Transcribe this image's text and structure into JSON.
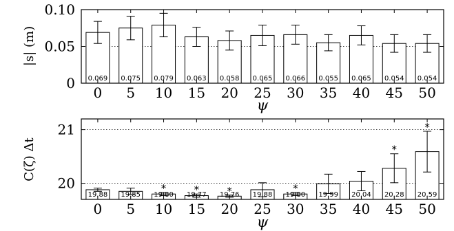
{
  "chart_data": [
    {
      "type": "bar",
      "title": "",
      "xlabel": "ψ",
      "ylabel": "|s| (m)",
      "categories": [
        "0",
        "5",
        "10",
        "15",
        "20",
        "25",
        "30",
        "35",
        "40",
        "45",
        "50"
      ],
      "values": [
        0.069,
        0.075,
        0.079,
        0.063,
        0.058,
        0.065,
        0.066,
        0.055,
        0.065,
        0.054,
        0.054
      ],
      "errors": [
        0.015,
        0.016,
        0.016,
        0.013,
        0.013,
        0.014,
        0.013,
        0.011,
        0.013,
        0.012,
        0.012
      ],
      "data_labels": [
        "0.069",
        "0.075",
        "0.079",
        "0.063",
        "0.058",
        "0.065",
        "0.066",
        "0.055",
        "0.065",
        "0.054",
        "0.054"
      ],
      "ylim": [
        0,
        0.1
      ],
      "yticks": [
        0,
        0.05,
        0.1
      ],
      "ytick_labels": [
        "0",
        "0.05",
        "0.10"
      ],
      "grid": "dotted",
      "significance": [
        false,
        false,
        false,
        false,
        false,
        false,
        false,
        false,
        false,
        false,
        false
      ]
    },
    {
      "type": "bar",
      "title": "",
      "xlabel": "ψ",
      "ylabel": "C(ζ) Δt",
      "categories": [
        "0",
        "5",
        "10",
        "15",
        "20",
        "25",
        "30",
        "35",
        "40",
        "45",
        "50"
      ],
      "values": [
        19.88,
        19.85,
        19.8,
        19.77,
        19.76,
        19.88,
        19.8,
        19.99,
        20.04,
        20.28,
        20.59
      ],
      "errors": [
        0.03,
        0.06,
        0.03,
        0.03,
        0.02,
        0.13,
        0.03,
        0.18,
        0.18,
        0.27,
        0.38
      ],
      "data_labels": [
        "19,88",
        "19,85",
        "19,80",
        "19,77",
        "19,76",
        "19,88",
        "19,80",
        "19,99",
        "20,04",
        "20,28",
        "20,59"
      ],
      "ylim": [
        19.7,
        21.2
      ],
      "yticks": [
        20,
        21
      ],
      "ytick_labels": [
        "20",
        "21"
      ],
      "grid": "dotted",
      "significance": [
        false,
        false,
        true,
        true,
        true,
        false,
        true,
        false,
        false,
        true,
        true
      ],
      "significance_marker": "*"
    }
  ]
}
